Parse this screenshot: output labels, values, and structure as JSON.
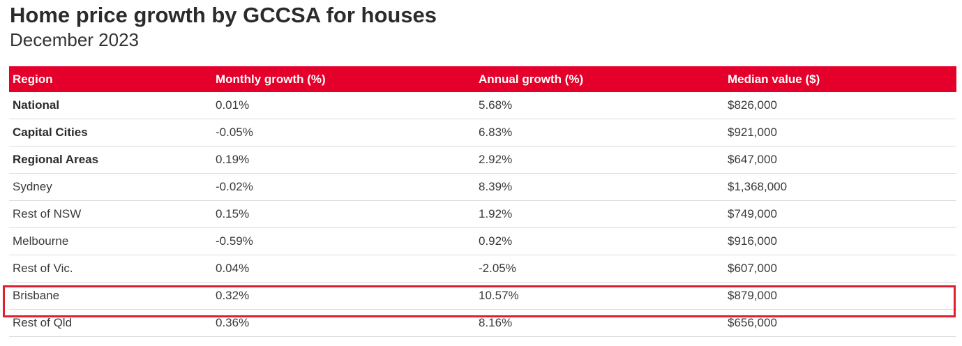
{
  "title": "Home price growth by GCCSA for houses",
  "subtitle": "December 2023",
  "table": {
    "headers": [
      "Region",
      "Monthly growth (%)",
      "Annual growth (%)",
      "Median value ($)"
    ],
    "rows": [
      {
        "region": "National",
        "monthly": "0.01%",
        "annual": "5.68%",
        "median": "$826,000",
        "bold": true
      },
      {
        "region": "Capital Cities",
        "monthly": "-0.05%",
        "annual": "6.83%",
        "median": "$921,000",
        "bold": true
      },
      {
        "region": "Regional Areas",
        "monthly": "0.19%",
        "annual": "2.92%",
        "median": "$647,000",
        "bold": true
      },
      {
        "region": "Sydney",
        "monthly": "-0.02%",
        "annual": "8.39%",
        "median": "$1,368,000",
        "bold": false
      },
      {
        "region": "Rest of NSW",
        "monthly": "0.15%",
        "annual": "1.92%",
        "median": "$749,000",
        "bold": false
      },
      {
        "region": "Melbourne",
        "monthly": "-0.59%",
        "annual": "0.92%",
        "median": "$916,000",
        "bold": false
      },
      {
        "region": "Rest of Vic.",
        "monthly": "0.04%",
        "annual": "-2.05%",
        "median": "$607,000",
        "bold": false
      },
      {
        "region": "Brisbane",
        "monthly": "0.32%",
        "annual": "10.57%",
        "median": "$879,000",
        "bold": false,
        "highlighted": true
      },
      {
        "region": "Rest of Qld",
        "monthly": "0.36%",
        "annual": "8.16%",
        "median": "$656,000",
        "bold": false
      }
    ]
  },
  "colors": {
    "header_bg": "#e4002b",
    "highlight_border": "#e0202e"
  }
}
